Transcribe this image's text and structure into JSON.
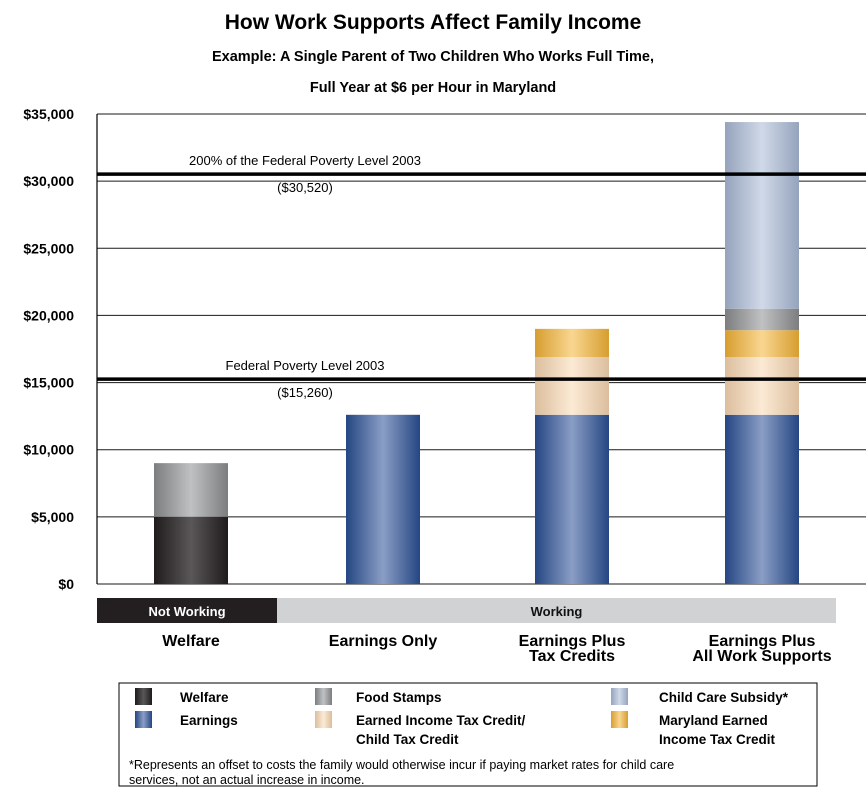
{
  "chart_data": {
    "type": "bar",
    "stacked": true,
    "title": "How Work Supports Affect Family Income",
    "subtitle_lines": [
      "Example: A Single Parent of Two Children Who Works Full Time,",
      "Full Year at $6 per Hour in Maryland"
    ],
    "ylim": [
      0,
      35000
    ],
    "yticks": [
      0,
      5000,
      10000,
      15000,
      20000,
      25000,
      30000,
      35000
    ],
    "ytick_labels": [
      "$0",
      "$5,000",
      "$10,000",
      "$15,000",
      "$20,000",
      "$25,000",
      "$30,000",
      "$35,000"
    ],
    "grid": true,
    "categories": [
      "Welfare",
      "Earnings Only",
      "Earnings Plus Tax Credits",
      "Earnings Plus All Work Supports"
    ],
    "category_label_lines": [
      [
        "Welfare"
      ],
      [
        "Earnings Only"
      ],
      [
        "Earnings Plus",
        "Tax Credits"
      ],
      [
        "Earnings Plus",
        "All Work Supports"
      ]
    ],
    "group_bands": [
      {
        "label": "Not Working",
        "categories": [
          "Welfare"
        ],
        "color": "#231f20",
        "text_color": "#ffffff"
      },
      {
        "label": "Working",
        "categories": [
          "Earnings Only",
          "Earnings Plus Tax Credits",
          "Earnings Plus All Work Supports"
        ],
        "color": "#d1d2d4",
        "text_color": "#111111"
      }
    ],
    "series": [
      {
        "name": "Welfare",
        "color": "#231f20",
        "values": [
          5000,
          0,
          0,
          0
        ]
      },
      {
        "name": "Earnings",
        "color": "#2a4f95",
        "values": [
          0,
          12600,
          12600,
          12600
        ]
      },
      {
        "name": "Earned Income Tax Credit/ Child Tax Credit",
        "color": "#f9d8b2",
        "values": [
          0,
          0,
          4300,
          4300
        ]
      },
      {
        "name": "Maryland Earned Income Tax Credit",
        "color": "#f4b436",
        "values": [
          0,
          0,
          2100,
          2000
        ]
      },
      {
        "name": "Food Stamps",
        "color": "#8d8e90",
        "values": [
          4000,
          0,
          0,
          1600
        ]
      },
      {
        "name": "Child Care Subsidy*",
        "color": "#a9b9d6",
        "values": [
          0,
          0,
          0,
          13900
        ]
      }
    ],
    "reference_lines": [
      {
        "value": 30520,
        "label": "200% of the Federal Poverty Level 2003",
        "value_label": "($30,520)"
      },
      {
        "value": 15260,
        "label": "Federal Poverty Level 2003",
        "value_label": "($15,260)"
      }
    ],
    "legend": {
      "placement": "bottom",
      "items": [
        {
          "lines": [
            "Welfare"
          ],
          "series": "Welfare"
        },
        {
          "lines": [
            "Food Stamps"
          ],
          "series": "Food Stamps"
        },
        {
          "lines": [
            "Child Care Subsidy*"
          ],
          "series": "Child Care Subsidy*"
        },
        {
          "lines": [
            "Earnings"
          ],
          "series": "Earnings"
        },
        {
          "lines": [
            "Earned Income Tax Credit/",
            "Child Tax Credit"
          ],
          "series": "Earned Income Tax Credit/ Child Tax Credit"
        },
        {
          "lines": [
            "Maryland Earned",
            "Income Tax Credit"
          ],
          "series": "Maryland Earned Income Tax Credit"
        }
      ],
      "footnote_lines": [
        "*Represents an offset to costs the family would otherwise incur if paying market rates for child care",
        "services, not an actual increase in income."
      ]
    }
  }
}
